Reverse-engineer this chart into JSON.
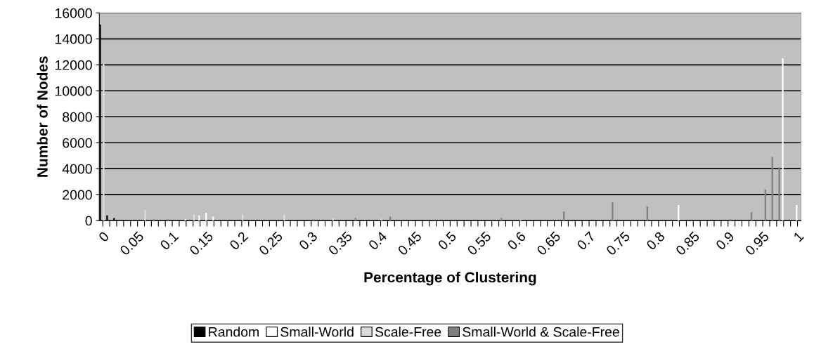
{
  "chart_data": {
    "type": "bar",
    "xlabel": "Percentage of Clustering",
    "ylabel": "Number of Nodes",
    "categories": [
      "0",
      null,
      null,
      null,
      null,
      "0.05",
      null,
      null,
      null,
      null,
      "0.1",
      null,
      null,
      null,
      null,
      "0.15",
      null,
      null,
      null,
      null,
      "0.2",
      null,
      null,
      null,
      null,
      "0.25",
      null,
      null,
      null,
      null,
      "0.3",
      null,
      null,
      null,
      null,
      "0.35",
      null,
      null,
      null,
      null,
      "0.4",
      null,
      null,
      null,
      null,
      "0.45",
      null,
      null,
      null,
      null,
      "0.5",
      null,
      null,
      null,
      null,
      "0.55",
      null,
      null,
      null,
      null,
      "0.6",
      null,
      null,
      null,
      null,
      "0.65",
      null,
      null,
      null,
      null,
      "0.7",
      null,
      null,
      null,
      null,
      "0.75",
      null,
      null,
      null,
      null,
      "0.8",
      null,
      null,
      null,
      null,
      "0.85",
      null,
      null,
      null,
      null,
      "0.9",
      null,
      null,
      null,
      null,
      "0.95",
      null,
      null,
      null,
      null,
      "1"
    ],
    "series": [
      {
        "name": "Random",
        "color": "#000000",
        "values": [
          15100,
          400,
          200,
          0,
          0,
          0,
          0,
          0,
          0,
          0,
          0,
          0,
          0,
          0,
          0,
          0,
          0,
          0,
          0,
          0,
          0,
          0,
          0,
          0,
          0,
          0,
          0,
          0,
          0,
          0,
          0,
          0,
          0,
          0,
          0,
          0,
          0,
          0,
          0,
          0,
          0,
          0,
          0,
          0,
          0,
          0,
          0,
          0,
          0,
          0,
          0,
          0,
          0,
          0,
          0,
          0,
          0,
          0,
          0,
          0,
          0,
          0,
          0,
          0,
          0,
          0,
          0,
          0,
          0,
          0,
          0,
          0,
          0,
          0,
          0,
          0,
          0,
          0,
          0,
          0,
          0,
          0,
          0,
          0,
          0,
          0,
          0,
          0,
          0,
          0,
          0,
          0,
          0,
          0,
          0,
          0,
          0,
          0,
          0,
          0,
          0
        ]
      },
      {
        "name": "Small-World",
        "color": "#ffffff",
        "values": [
          0,
          0,
          0,
          0,
          0,
          0,
          0,
          0,
          0,
          0,
          0,
          0,
          100,
          0,
          400,
          600,
          300,
          0,
          0,
          0,
          0,
          0,
          0,
          0,
          0,
          0,
          0,
          0,
          0,
          0,
          0,
          0,
          0,
          0,
          0,
          0,
          0,
          0,
          0,
          0,
          0,
          0,
          0,
          0,
          0,
          0,
          0,
          0,
          0,
          0,
          0,
          0,
          0,
          0,
          0,
          0,
          0,
          0,
          0,
          0,
          0,
          0,
          0,
          0,
          0,
          0,
          0,
          0,
          0,
          0,
          0,
          0,
          0,
          0,
          0,
          0,
          0,
          0,
          0,
          0,
          0,
          0,
          0,
          1200,
          0,
          0,
          0,
          0,
          0,
          0,
          0,
          0,
          0,
          0,
          0,
          0,
          0,
          0,
          12500,
          0,
          1200
        ]
      },
      {
        "name": "Scale-Free",
        "color": "#dcdcdc",
        "values": [
          12100,
          0,
          0,
          0,
          0,
          0,
          800,
          0,
          0,
          0,
          0,
          0,
          0,
          500,
          0,
          0,
          0,
          0,
          0,
          0,
          500,
          0,
          0,
          0,
          0,
          0,
          450,
          0,
          0,
          0,
          0,
          0,
          0,
          200,
          0,
          0,
          0,
          0,
          0,
          0,
          150,
          0,
          0,
          0,
          0,
          0,
          0,
          0,
          0,
          0,
          0,
          0,
          0,
          0,
          0,
          0,
          0,
          0,
          0,
          0,
          100,
          0,
          0,
          0,
          0,
          0,
          0,
          0,
          0,
          0,
          0,
          0,
          0,
          0,
          0,
          0,
          0,
          0,
          0,
          0,
          0,
          0,
          0,
          0,
          0,
          0,
          0,
          0,
          0,
          0,
          0,
          0,
          0,
          0,
          0,
          0,
          0,
          0,
          0,
          0,
          0
        ]
      },
      {
        "name": "Small-World & Scale-Free",
        "color": "#808080",
        "values": [
          0,
          0,
          0,
          0,
          0,
          0,
          0,
          100,
          0,
          100,
          0,
          0,
          0,
          0,
          0,
          0,
          0,
          0,
          0,
          0,
          0,
          0,
          0,
          0,
          0,
          0,
          0,
          0,
          0,
          0,
          100,
          0,
          0,
          0,
          0,
          0,
          200,
          0,
          0,
          0,
          0,
          300,
          0,
          0,
          0,
          0,
          0,
          0,
          0,
          0,
          0,
          0,
          0,
          0,
          0,
          0,
          0,
          200,
          0,
          0,
          0,
          0,
          0,
          0,
          0,
          0,
          700,
          0,
          0,
          0,
          0,
          0,
          0,
          1400,
          0,
          0,
          0,
          0,
          1100,
          0,
          0,
          0,
          0,
          0,
          0,
          0,
          0,
          0,
          0,
          0,
          100,
          0,
          0,
          650,
          0,
          2400,
          4900,
          4100,
          0,
          0,
          0
        ]
      }
    ],
    "ylim": [
      0,
      16000
    ],
    "yticks": [
      0,
      2000,
      4000,
      6000,
      8000,
      10000,
      12000,
      14000,
      16000
    ],
    "grid": "y",
    "legend": "bottom"
  }
}
